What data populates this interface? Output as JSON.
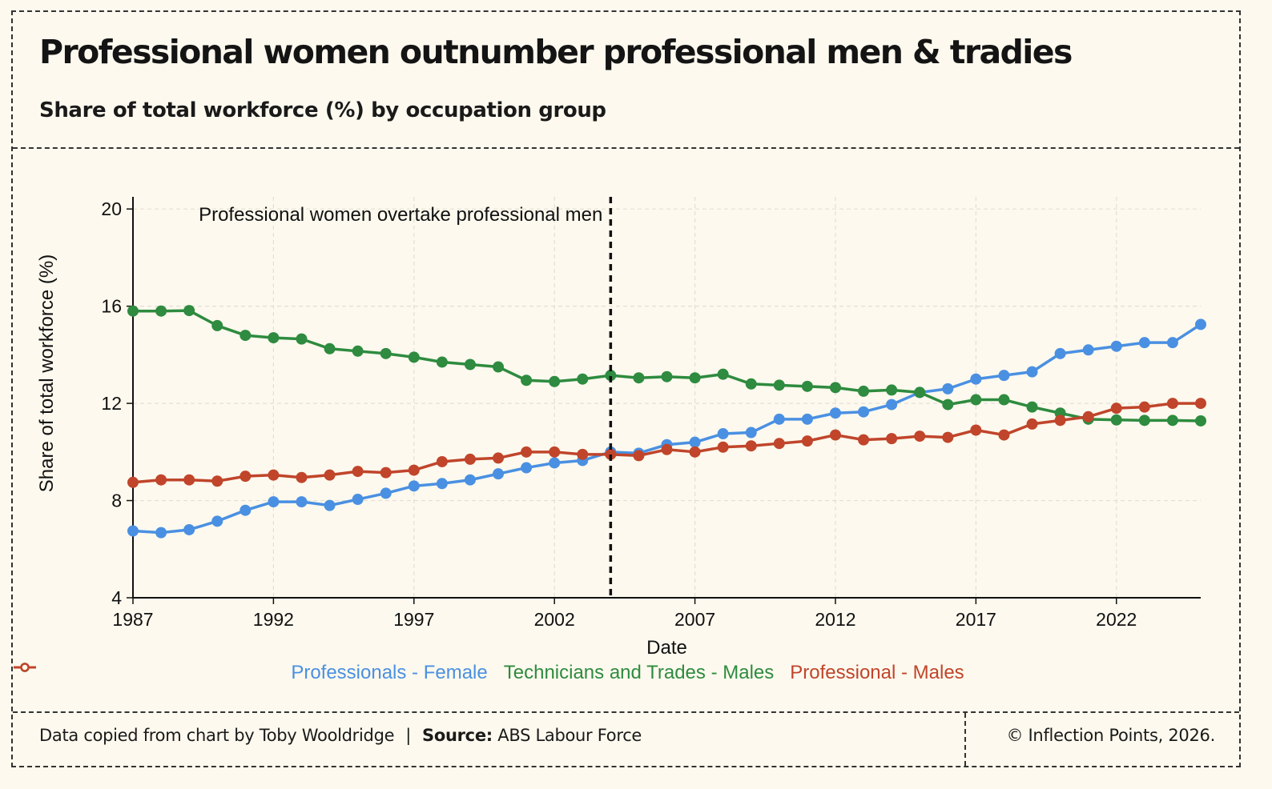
{
  "header": {
    "title": "Professional women outnumber professional men & tradies",
    "subtitle": "Share of total workforce (%) by occupation group"
  },
  "footer": {
    "credit": "Data copied from chart by Toby Wooldridge",
    "separator": "|",
    "source_label": "Source:",
    "source_value": "ABS Labour Force",
    "copyright": "© Inflection Points, 2026."
  },
  "colors": {
    "background": "#fdf9ee",
    "Professionals - Female": "#4a90e2",
    "Technicians and Trades - Males": "#2e8b3f",
    "Professional - Males": "#c0452b",
    "grid": "#e3dfd4"
  },
  "chart_data": {
    "type": "line",
    "xlabel": "Date",
    "ylabel": "Share of total workforce (%)",
    "xlim": [
      1987,
      2025
    ],
    "ylim": [
      4,
      20.5
    ],
    "xticks": [
      1987,
      1992,
      1997,
      2002,
      2007,
      2012,
      2017,
      2022
    ],
    "yticks": [
      4,
      8,
      12,
      16,
      20
    ],
    "grid": true,
    "legend_position": "bottom",
    "annotation": {
      "text": "Professional women overtake professional men",
      "x": 2004
    },
    "x": [
      1987,
      1988,
      1989,
      1990,
      1991,
      1992,
      1993,
      1994,
      1995,
      1996,
      1997,
      1998,
      1999,
      2000,
      2001,
      2002,
      2003,
      2004,
      2005,
      2006,
      2007,
      2008,
      2009,
      2010,
      2011,
      2012,
      2013,
      2014,
      2015,
      2016,
      2017,
      2018,
      2019,
      2020,
      2021,
      2022,
      2023,
      2024,
      2025
    ],
    "series": [
      {
        "name": "Professionals - Female",
        "values": [
          6.75,
          6.68,
          6.8,
          7.15,
          7.6,
          7.95,
          7.95,
          7.8,
          8.05,
          8.3,
          8.6,
          8.7,
          8.85,
          9.1,
          9.35,
          9.55,
          9.65,
          10.0,
          9.95,
          10.3,
          10.4,
          10.75,
          10.8,
          11.35,
          11.35,
          11.6,
          11.65,
          11.95,
          12.45,
          12.6,
          13.0,
          13.15,
          13.3,
          14.05,
          14.2,
          14.35,
          14.5,
          14.5,
          15.25
        ]
      },
      {
        "name": "Technicians and Trades - Males",
        "values": [
          15.8,
          15.8,
          15.82,
          15.2,
          14.8,
          14.7,
          14.65,
          14.25,
          14.15,
          14.05,
          13.9,
          13.7,
          13.6,
          13.5,
          12.95,
          12.9,
          13.0,
          13.15,
          13.05,
          13.1,
          13.05,
          13.2,
          12.8,
          12.75,
          12.7,
          12.65,
          12.5,
          12.55,
          12.45,
          11.95,
          12.15,
          12.15,
          11.85,
          11.6,
          11.35,
          11.32,
          11.3,
          11.3,
          11.28
        ]
      },
      {
        "name": "Professional - Males",
        "values": [
          8.75,
          8.85,
          8.85,
          8.8,
          9.0,
          9.05,
          8.95,
          9.05,
          9.2,
          9.15,
          9.25,
          9.6,
          9.7,
          9.75,
          10.0,
          10.0,
          9.9,
          9.9,
          9.85,
          10.1,
          10.0,
          10.2,
          10.25,
          10.35,
          10.45,
          10.7,
          10.5,
          10.55,
          10.65,
          10.6,
          10.9,
          10.7,
          11.15,
          11.3,
          11.45,
          11.8,
          11.85,
          12.0,
          12.0
        ]
      }
    ]
  }
}
